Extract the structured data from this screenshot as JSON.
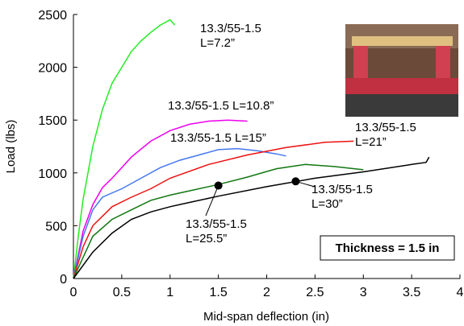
{
  "chart_data": {
    "type": "line",
    "x_label": "Mid-span deflection (in)",
    "y_label": "Load (lbs)",
    "xlim": [
      0,
      4
    ],
    "xticks": [
      0,
      0.5,
      1,
      1.5,
      2,
      2.5,
      3,
      3.5,
      4
    ],
    "ylim": [
      0,
      2500
    ],
    "yticks": [
      0,
      500,
      1000,
      1500,
      2000,
      2500
    ],
    "annotation": "Thickness = 1.5 in",
    "series": [
      {
        "label": [
          "13.3/55-1.5",
          "L=7.2”"
        ],
        "color": "#22ee22",
        "x": [
          0,
          0.05,
          0.1,
          0.2,
          0.3,
          0.4,
          0.5,
          0.6,
          0.7,
          0.8,
          0.9,
          1.0,
          1.05
        ],
        "values": [
          0,
          400,
          750,
          1250,
          1600,
          1850,
          2000,
          2150,
          2250,
          2330,
          2400,
          2450,
          2400
        ]
      },
      {
        "label": [
          "13.3/55-1.5 L=10.8”"
        ],
        "color": "#ee00ee",
        "x": [
          0,
          0.1,
          0.2,
          0.3,
          0.4,
          0.5,
          0.6,
          0.8,
          1.0,
          1.2,
          1.4,
          1.6,
          1.8
        ],
        "values": [
          0,
          450,
          700,
          860,
          950,
          1050,
          1150,
          1300,
          1400,
          1460,
          1490,
          1500,
          1490
        ]
      },
      {
        "label": [
          "13.3/55-1.5 L=15”"
        ],
        "color": "#4477ee",
        "x": [
          0,
          0.1,
          0.2,
          0.3,
          0.5,
          0.7,
          0.9,
          1.1,
          1.3,
          1.5,
          1.7,
          1.9,
          2.1,
          2.2
        ],
        "values": [
          0,
          400,
          650,
          770,
          850,
          950,
          1050,
          1120,
          1170,
          1220,
          1230,
          1210,
          1180,
          1160
        ]
      },
      {
        "label": [
          "13.3/55-1.5",
          "L=21”"
        ],
        "color": "#ee1111",
        "x": [
          0,
          0.1,
          0.2,
          0.4,
          0.6,
          0.8,
          1.0,
          1.4,
          1.8,
          2.2,
          2.6,
          2.9
        ],
        "values": [
          0,
          300,
          500,
          680,
          770,
          850,
          950,
          1080,
          1170,
          1240,
          1290,
          1300
        ]
      },
      {
        "label": [
          "13.3/55-1.5",
          "L=25.5”"
        ],
        "color": "#117711",
        "x": [
          0,
          0.2,
          0.4,
          0.6,
          0.8,
          1.0,
          1.2,
          1.5,
          1.8,
          2.1,
          2.4,
          2.7,
          3.0
        ],
        "values": [
          0,
          400,
          560,
          650,
          740,
          790,
          830,
          890,
          960,
          1040,
          1080,
          1060,
          1030
        ],
        "marker": {
          "x": 1.5,
          "y": 880
        }
      },
      {
        "label": [
          "13.3/55-1.5",
          "L=30”"
        ],
        "color": "#000000",
        "x": [
          0,
          0.2,
          0.4,
          0.6,
          0.8,
          1.0,
          1.2,
          1.5,
          2.0,
          2.5,
          3.0,
          3.5,
          3.65,
          3.68
        ],
        "values": [
          0,
          250,
          430,
          560,
          630,
          680,
          720,
          780,
          870,
          950,
          1010,
          1080,
          1100,
          1150
        ],
        "marker": {
          "x": 2.3,
          "y": 920
        }
      }
    ]
  }
}
